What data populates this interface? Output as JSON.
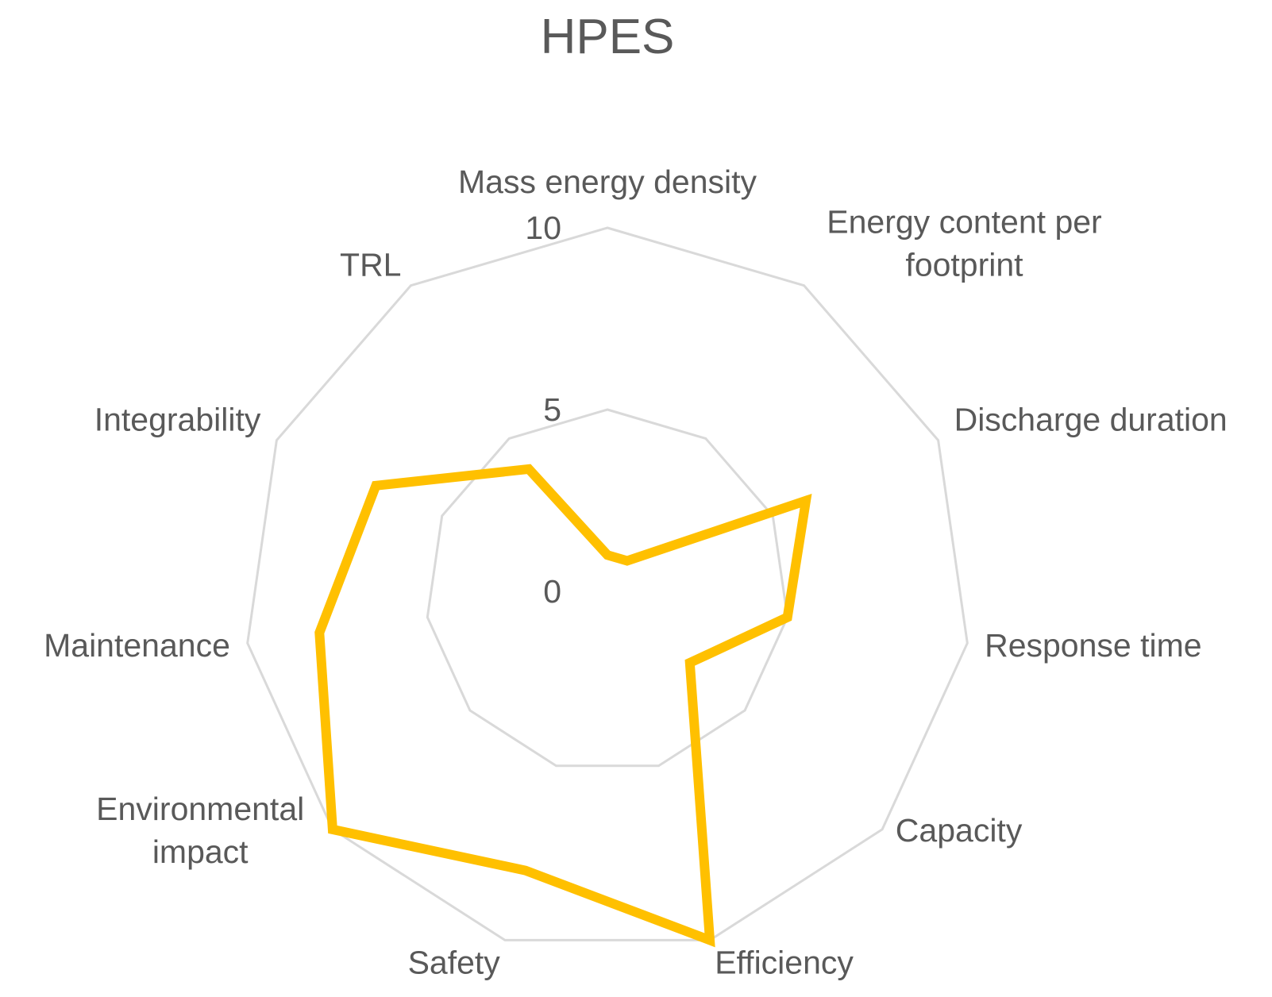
{
  "chart_data": {
    "type": "radar",
    "title": "HPES",
    "categories": [
      "Mass energy density",
      "Energy content per footprint",
      "Discharge duration",
      "Response time",
      "Capacity",
      "Efficiency",
      "Safety",
      "Environmental impact",
      "Maintenance",
      "Integrability",
      "TRL"
    ],
    "category_lines": [
      [
        "Mass energy density"
      ],
      [
        "Energy content per",
        "footprint"
      ],
      [
        "Discharge duration"
      ],
      [
        "Response time"
      ],
      [
        "Capacity"
      ],
      [
        "Efficiency"
      ],
      [
        "Safety"
      ],
      [
        "Environmental",
        "impact"
      ],
      [
        "Maintenance"
      ],
      [
        "Integrability"
      ],
      [
        "TRL"
      ]
    ],
    "series": [
      {
        "values": [
          1,
          1,
          6,
          5,
          3,
          10,
          8,
          10,
          8,
          7,
          4
        ]
      }
    ],
    "rlim": [
      0,
      10
    ],
    "ticks": [
      "0",
      "5",
      "10"
    ],
    "tick_values": [
      0,
      5,
      10
    ],
    "grid": true,
    "legend": "none",
    "colors": {
      "series": "#FFC000",
      "grid": "#D9D9D9",
      "text": "#595959"
    }
  }
}
